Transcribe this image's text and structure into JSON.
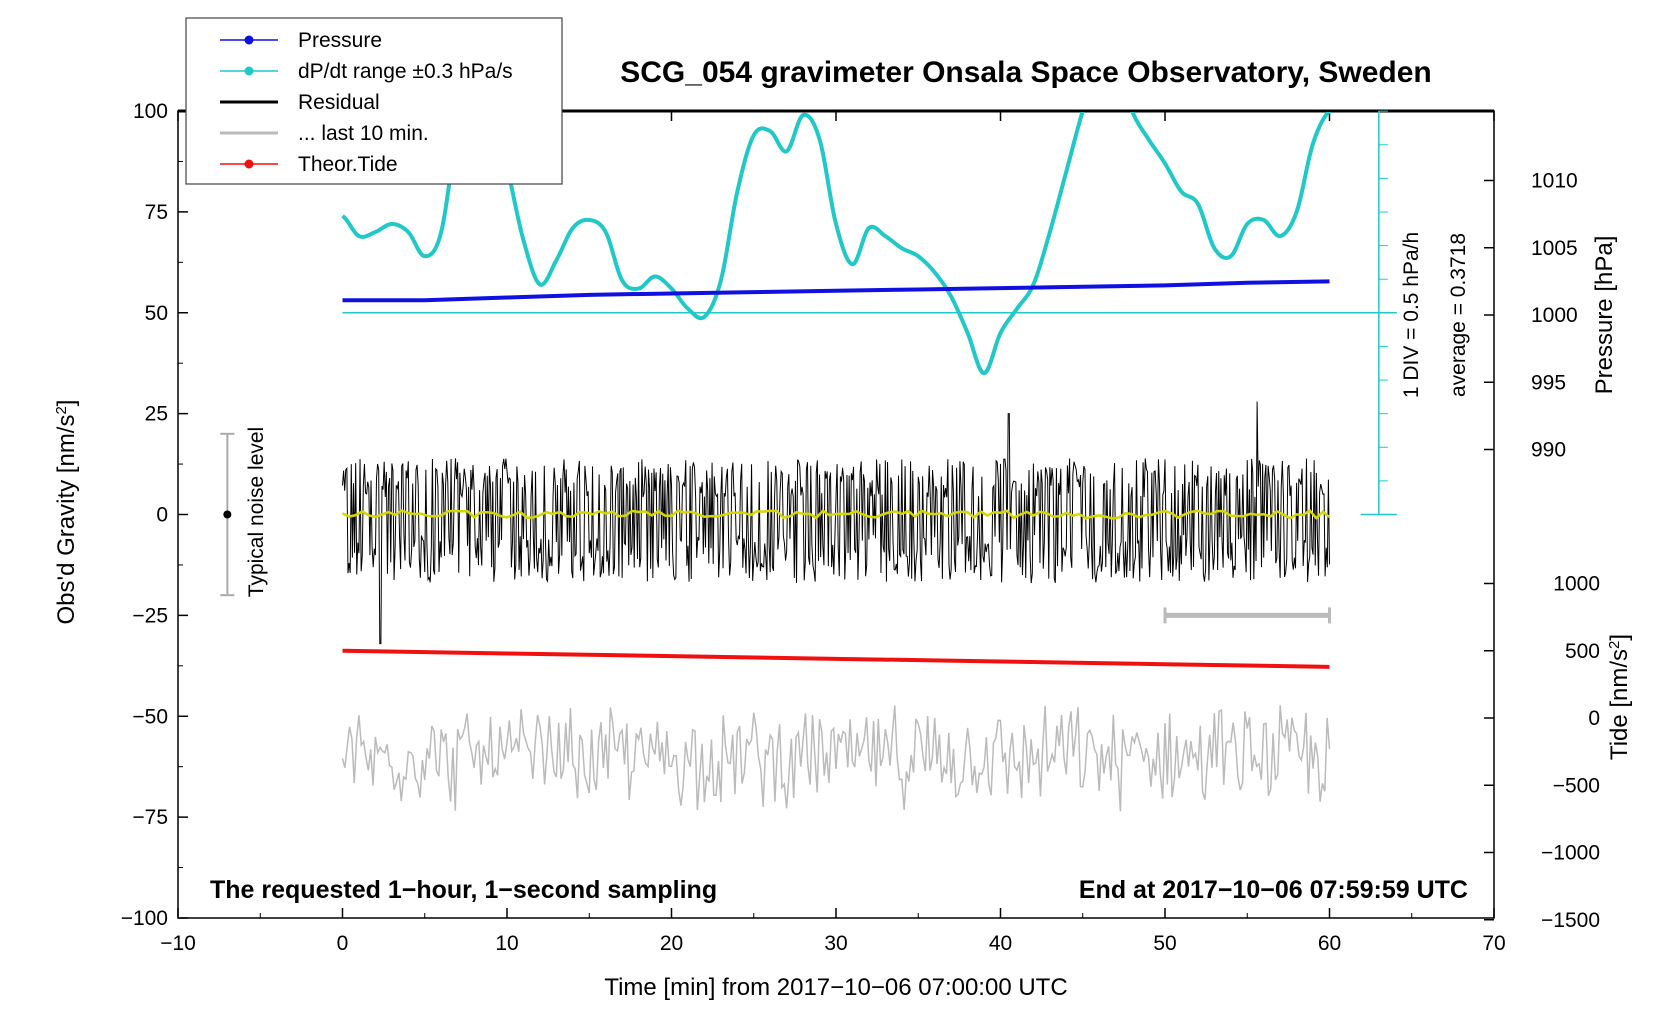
{
  "chart_data": {
    "type": "line",
    "title": "SCG_054 gravimeter Onsala Space Observatory, Sweden",
    "xlabel": "Time [min] from 2017−10−06 07:00:00 UTC",
    "ylabel_left": "Obs'd Gravity [nm/s",
    "ylabel_left_sup": "2",
    "ylabel_left_close": "]",
    "ylabel_right_pressure": "Pressure [hPa]",
    "ylabel_right_tide": "Tide [nm/s",
    "ylabel_right_tide_sup": "2",
    "ylabel_right_tide_close": "]",
    "xlim": [
      -10,
      70
    ],
    "ylim_left": [
      -100,
      100
    ],
    "x_ticks": [
      "−10",
      "0",
      "10",
      "20",
      "30",
      "40",
      "50",
      "60",
      "70"
    ],
    "y_left_ticks": [
      "−100",
      "−75",
      "−50",
      "−25",
      "0",
      "25",
      "50",
      "75",
      "100"
    ],
    "pressure_ticks": [
      "990",
      "995",
      "1000",
      "1005",
      "1010"
    ],
    "tide_ticks": [
      "−1500",
      "−1000",
      "−500",
      "0",
      "500",
      "1000"
    ],
    "grid": false,
    "legend_position": "top-left",
    "legend": [
      {
        "label": "Pressure",
        "color": "#1010e0",
        "marker": true
      },
      {
        "label": "dP/dt range ±0.3 hPa/s",
        "color": "#20c8c8",
        "marker": true
      },
      {
        "label": "Residual",
        "color": "#000000",
        "marker": false
      },
      {
        "label": "... last 10 min.",
        "color": "#bbbbbb",
        "marker": false
      },
      {
        "label": "Theor.Tide",
        "color": "#f01010",
        "marker": true
      }
    ],
    "annotations": {
      "noise_label": "Typical noise level",
      "dpdt_scale": "1 DIV = 0.5 hPa/h",
      "dpdt_average": "average = 0.3718",
      "footnote_left": "The requested 1−hour, 1−second sampling",
      "footnote_right": "End at 2017−10−06 07:59:59 UTC"
    },
    "series": [
      {
        "name": "Pressure",
        "unit": "hPa",
        "color": "#1010e0",
        "x": [
          0,
          5,
          10,
          15,
          20,
          25,
          30,
          35,
          40,
          45,
          50,
          55,
          60
        ],
        "values": [
          1001.1,
          1001.1,
          1001.3,
          1001.5,
          1001.6,
          1001.7,
          1001.8,
          1001.9,
          1002.0,
          1002.1,
          1002.2,
          1002.4,
          1002.5
        ]
      },
      {
        "name": "dP/dt range ±0.3 hPa/s",
        "color": "#20c8c8",
        "baseline_y": 50,
        "x": [
          0,
          1,
          2,
          3,
          4,
          5,
          6,
          7,
          8,
          9,
          10,
          11,
          12,
          13,
          14,
          15,
          16,
          17,
          18,
          19,
          20,
          21,
          22,
          23,
          24,
          25,
          26,
          27,
          28,
          29,
          30,
          31,
          32,
          33,
          34,
          35,
          36,
          37,
          38,
          39,
          40,
          41,
          42,
          43,
          44,
          45,
          46,
          47,
          48,
          49,
          50,
          51,
          52,
          53,
          54,
          55,
          56,
          57,
          58,
          59,
          60
        ],
        "values": [
          74,
          69,
          70,
          72,
          70,
          64,
          70,
          96,
          112,
          100,
          86,
          68,
          57,
          63,
          71,
          73,
          70,
          58,
          56,
          59,
          56,
          51,
          49,
          58,
          80,
          94,
          95,
          90,
          99,
          93,
          72,
          62,
          71,
          69,
          66,
          64,
          60,
          54,
          45,
          35,
          45,
          51,
          57,
          70,
          85,
          100,
          112,
          113,
          100,
          93,
          87,
          80,
          77,
          66,
          64,
          72,
          73,
          69,
          75,
          92,
          100
        ]
      },
      {
        "name": "Residual",
        "color": "#000000",
        "x_range": [
          0,
          60
        ],
        "band": [
          -17,
          14
        ],
        "extremes": [
          {
            "x": 2.3,
            "y": -32
          },
          {
            "x": 55.6,
            "y": 28
          },
          {
            "x": 40.5,
            "y": 25
          }
        ]
      },
      {
        "name": "... last 10 min.",
        "color": "#bbbbbb",
        "x_range": [
          50,
          60
        ],
        "y": -25
      },
      {
        "name": "Theor.Tide",
        "unit": "nm/s2",
        "color": "#f01010",
        "x": [
          0,
          10,
          20,
          30,
          40,
          50,
          60
        ],
        "values": [
          500,
          480,
          460,
          440,
          420,
          400,
          380
        ]
      }
    ],
    "noise_bar": {
      "x": -7,
      "range": [
        -20,
        20
      ],
      "center": 0
    }
  }
}
